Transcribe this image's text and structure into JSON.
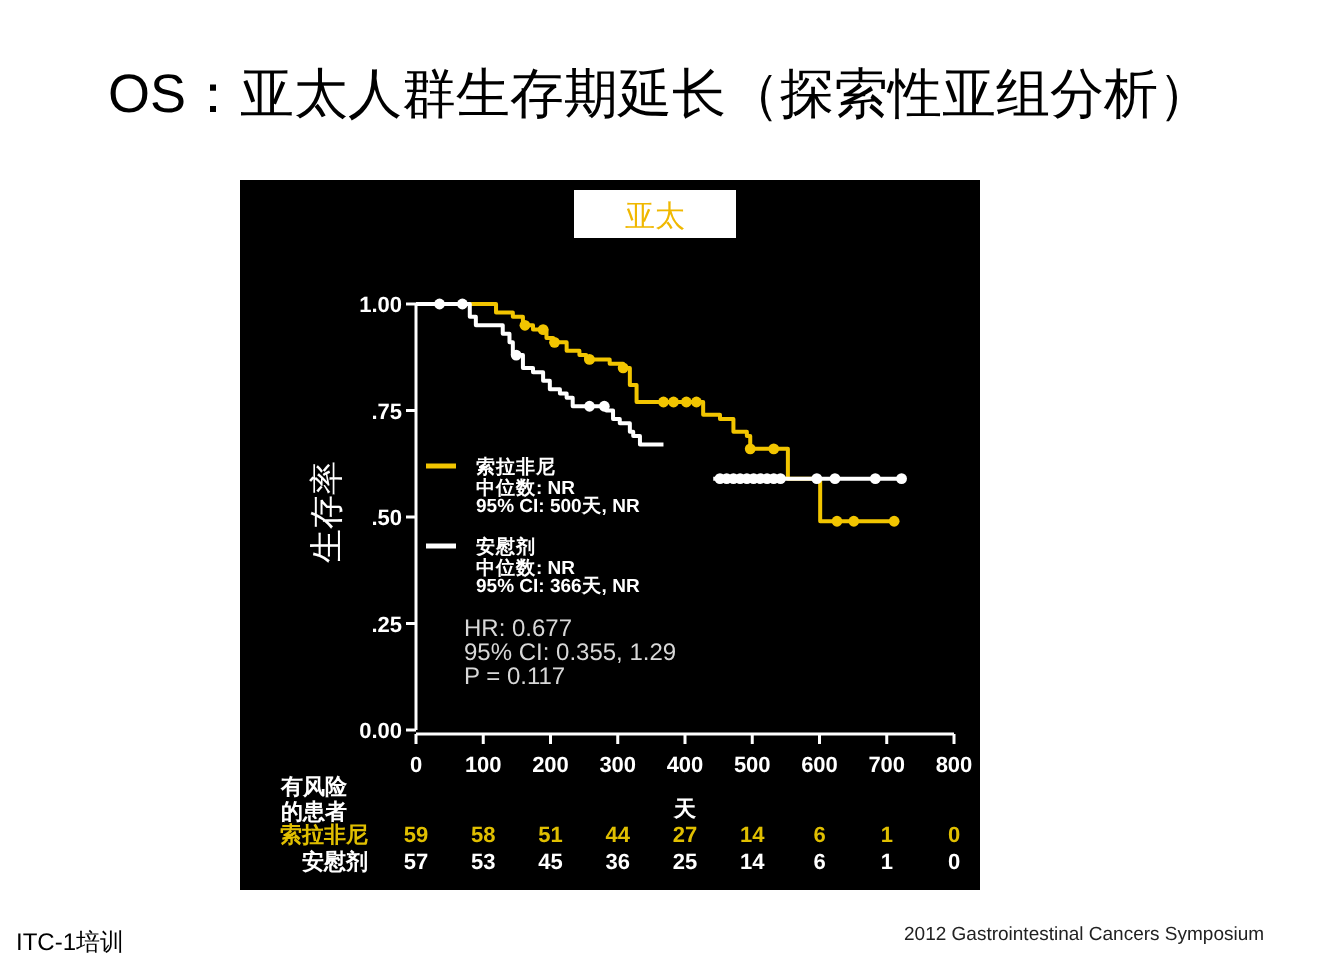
{
  "chart_data": [
    {
      "type": "step",
      "title": "OS：亚太人群生存期延长（探索性亚组分析）",
      "subtitle": "亚太",
      "xlabel": "天",
      "ylabel": "生存率",
      "xlim": [
        0,
        800
      ],
      "xticks": [
        0,
        100,
        200,
        300,
        400,
        500,
        600,
        700,
        800
      ],
      "ylim": [
        0,
        1
      ],
      "yticks": [
        {
          "value": 0,
          "label": "0.00"
        },
        {
          "value": 0.25,
          "label": ".25"
        },
        {
          "value": 0.5,
          "label": ".50"
        },
        {
          "value": 0.75,
          "label": ".75"
        },
        {
          "value": 1,
          "label": "1.00"
        }
      ],
      "grid": false,
      "legend": "left",
      "series": [
        {
          "name": "索拉非尼",
          "color": "#f2c500",
          "x": [
            0,
            119,
            144,
            159,
            174,
            194,
            204,
            224,
            243,
            253,
            288,
            308,
            318,
            328,
            427,
            452,
            472,
            492,
            497,
            553,
            601,
            711
          ],
          "values": [
            1.0,
            0.98,
            0.97,
            0.95,
            0.94,
            0.92,
            0.91,
            0.89,
            0.88,
            0.87,
            0.86,
            0.85,
            0.81,
            0.77,
            0.74,
            0.73,
            0.7,
            0.69,
            0.66,
            0.59,
            0.49,
            0.49
          ]
        },
        {
          "name": "安慰剂",
          "color": "#ffffff",
          "x": [
            0,
            80,
            89,
            129,
            139,
            144,
            159,
            174,
            189,
            199,
            214,
            224,
            233,
            283,
            293,
            303,
            318,
            323,
            333,
            368
          ],
          "values": [
            1.0,
            0.97,
            0.95,
            0.93,
            0.91,
            0.88,
            0.85,
            0.84,
            0.82,
            0.8,
            0.79,
            0.78,
            0.76,
            0.75,
            0.73,
            0.72,
            0.7,
            0.69,
            0.67,
            0.67
          ]
        },
        {
          "color": "#ffffff",
          "x": [
            442,
            722
          ],
          "values": [
            0.59,
            0.59
          ]
        },
        {
          "type": "scatter",
          "color": "#f2c500",
          "x": [
            162,
            189,
            206,
            258,
            308,
            368,
            383,
            402,
            417,
            497,
            532,
            626,
            651,
            711
          ],
          "values": [
            0.95,
            0.94,
            0.91,
            0.87,
            0.85,
            0.77,
            0.77,
            0.77,
            0.77,
            0.66,
            0.66,
            0.49,
            0.49,
            0.49
          ]
        },
        {
          "type": "scatter",
          "color": "#ffffff",
          "x": [
            35,
            69,
            149,
            258,
            280,
            452,
            462,
            472,
            482,
            492,
            502,
            512,
            522,
            532,
            542,
            596,
            623,
            683,
            722
          ],
          "values": [
            1.0,
            1.0,
            0.88,
            0.76,
            0.76,
            0.59,
            0.59,
            0.59,
            0.59,
            0.59,
            0.59,
            0.59,
            0.59,
            0.59,
            0.59,
            0.59,
            0.59,
            0.59,
            0.59
          ]
        }
      ],
      "annotations": [
        "中位数: NR",
        "95% CI: 500天, NR",
        "中位数: NR",
        "95% CI: 366天, NR",
        "HR: 0.677",
        "95% CI: 0.355, 1.29",
        "P = 0.117",
        "ITC-1培训",
        "2012 Gastrointestinal Cancers Symposium"
      ]
    },
    {
      "type": "other",
      "title": "有风险的患者",
      "series": [
        {
          "name": "索拉非尼",
          "color": "#e0bf00"
        },
        {
          "name": "安慰剂",
          "color": "#ffffff"
        }
      ],
      "annotations": [
        "59",
        "58",
        "51",
        "44",
        "27",
        "14",
        "6",
        "1",
        "0",
        "57",
        "53",
        "45",
        "36",
        "25",
        "14",
        "6",
        "1",
        "0"
      ]
    }
  ]
}
